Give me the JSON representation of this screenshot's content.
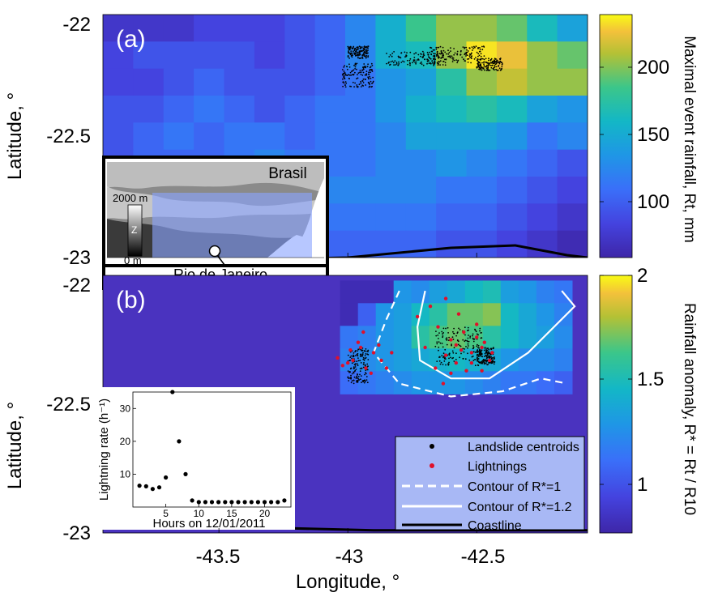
{
  "chart_data": [
    {
      "type": "heatmap",
      "panel": "(a)",
      "panel_label": "(a)",
      "ylabel": "Latitude, °",
      "y_ticks": [
        "-22",
        "-22.5",
        "-23"
      ],
      "xlim": [
        -43.95,
        -42.07
      ],
      "ylim": [
        -23,
        -22
      ],
      "colorbar_label": "Maximal event rainfall, Rt, mm",
      "colorbar_ticks": [
        "100",
        "150",
        "200"
      ],
      "colorbar_range": [
        55,
        235
      ],
      "grid_rows": [
        [
          70,
          70,
          70,
          80,
          80,
          80,
          90,
          100,
          120,
          150,
          180,
          200,
          200,
          190,
          160,
          140
        ],
        [
          80,
          90,
          90,
          90,
          90,
          80,
          90,
          100,
          120,
          150,
          160,
          200,
          230,
          220,
          200,
          190
        ],
        [
          80,
          80,
          90,
          100,
          90,
          90,
          90,
          100,
          110,
          130,
          140,
          170,
          200,
          210,
          200,
          200
        ],
        [
          90,
          90,
          100,
          110,
          100,
          90,
          100,
          110,
          110,
          130,
          150,
          160,
          170,
          160,
          140,
          130
        ],
        [
          90,
          100,
          110,
          100,
          110,
          110,
          100,
          110,
          110,
          120,
          140,
          140,
          140,
          130,
          110,
          120
        ],
        [
          90,
          100,
          100,
          100,
          110,
          120,
          110,
          110,
          110,
          120,
          120,
          130,
          120,
          110,
          100,
          90
        ],
        [
          90,
          100,
          100,
          100,
          110,
          110,
          110,
          120,
          120,
          120,
          120,
          110,
          110,
          100,
          90,
          80
        ],
        [
          70,
          80,
          80,
          90,
          100,
          110,
          110,
          110,
          110,
          110,
          110,
          100,
          100,
          90,
          80,
          70
        ],
        [
          60,
          70,
          70,
          80,
          90,
          100,
          100,
          100,
          100,
          100,
          100,
          90,
          90,
          80,
          70,
          60
        ]
      ],
      "landslide_centroids": [
        {
          "lon": [
            -42.68,
            -42.47
          ],
          "lat": [
            -22.2,
            -22.13
          ]
        },
        {
          "lon": [
            -42.85,
            -42.62
          ],
          "lat": [
            -22.21,
            -22.15
          ]
        },
        {
          "lon": [
            -42.5,
            -42.4
          ],
          "lat": [
            -22.23,
            -22.18
          ]
        },
        {
          "lon": [
            -43.02,
            -42.9
          ],
          "lat": [
            -22.3,
            -22.2
          ]
        },
        {
          "lon": [
            -43.0,
            -42.92
          ],
          "lat": [
            -22.18,
            -22.13
          ]
        }
      ],
      "coastline": [
        [
          -43.95,
          -23.02
        ],
        [
          -43.0,
          -23.0
        ],
        [
          -42.6,
          -22.96
        ],
        [
          -42.35,
          -22.95
        ],
        [
          -42.15,
          -22.99
        ],
        [
          -42.07,
          -23.0
        ]
      ],
      "inset_map": {
        "label": "Brasil",
        "city_label": "Rio de Janeiro",
        "z_label": "Z",
        "z_max_label": "2000 m",
        "z_min_label": "0 m"
      }
    },
    {
      "type": "heatmap",
      "panel": "(b)",
      "panel_label": "(b)",
      "xlabel": "Longitude, °",
      "ylabel": "Latitude, °",
      "x_ticks": [
        "-43.5",
        "-43",
        "-42.5"
      ],
      "x_tick_values": [
        -43.5,
        -43.0,
        -42.5
      ],
      "y_ticks": [
        "-22",
        "-22.5",
        "-23"
      ],
      "xlim": [
        -43.95,
        -42.07
      ],
      "ylim": [
        -23,
        -22
      ],
      "colorbar_label": "Rainfall anomaly, R* = Rt / R10",
      "colorbar_ticks": [
        "1",
        "1.5",
        "2"
      ],
      "colorbar_range": [
        0.68,
        2.04
      ],
      "anomaly_grid": {
        "lon_range": [
          -43.03,
          -42.13
        ],
        "lat_range": [
          -22.46,
          -22.02
        ],
        "rows": [
          [
            0.72,
            0.72,
            0.72,
            1.25,
            1.2,
            1.3,
            1.35,
            1.45,
            1.5,
            1.3,
            1.25,
            1.15,
            1.1
          ],
          [
            0.72,
            1.0,
            1.25,
            1.3,
            1.45,
            1.55,
            1.7,
            1.7,
            1.75,
            1.45,
            1.35,
            1.25,
            1.15
          ],
          [
            1.1,
            1.15,
            1.25,
            1.3,
            1.55,
            1.65,
            1.7,
            1.65,
            1.55,
            1.45,
            1.35,
            1.3,
            1.2
          ],
          [
            1.15,
            1.2,
            1.25,
            1.3,
            1.35,
            1.4,
            1.45,
            1.4,
            1.35,
            1.25,
            1.2,
            1.2,
            1.15
          ],
          [
            1.05,
            1.1,
            1.15,
            1.2,
            1.25,
            1.25,
            1.25,
            1.2,
            1.15,
            1.1,
            1.1,
            1.05,
            1.0
          ]
        ]
      },
      "contour_r1": [
        [
          -42.8,
          -22.06
        ],
        [
          -42.85,
          -22.17
        ],
        [
          -42.9,
          -22.3
        ],
        [
          -42.8,
          -22.42
        ],
        [
          -42.6,
          -22.47
        ],
        [
          -42.4,
          -22.45
        ],
        [
          -42.25,
          -22.4
        ],
        [
          -42.15,
          -22.42
        ]
      ],
      "contour_r12": [
        [
          -42.7,
          -22.06
        ],
        [
          -42.73,
          -22.2
        ],
        [
          -42.72,
          -22.33
        ],
        [
          -42.6,
          -22.4
        ],
        [
          -42.45,
          -22.4
        ],
        [
          -42.3,
          -22.3
        ],
        [
          -42.2,
          -22.2
        ],
        [
          -42.12,
          -22.12
        ],
        [
          -42.17,
          -22.06
        ]
      ],
      "lightnings": [
        [
          -42.95,
          -22.28
        ],
        [
          -42.98,
          -22.33
        ],
        [
          -42.93,
          -22.36
        ],
        [
          -43.0,
          -22.34
        ],
        [
          -42.9,
          -22.3
        ],
        [
          -42.87,
          -22.33
        ],
        [
          -42.96,
          -22.26
        ],
        [
          -42.91,
          -22.38
        ],
        [
          -42.85,
          -22.36
        ],
        [
          -43.04,
          -22.32
        ],
        [
          -43.02,
          -22.35
        ],
        [
          -42.88,
          -22.27
        ],
        [
          -42.99,
          -22.29
        ],
        [
          -42.83,
          -22.3
        ],
        [
          -42.94,
          -22.22
        ],
        [
          -42.6,
          -22.25
        ],
        [
          -42.55,
          -22.22
        ],
        [
          -42.52,
          -22.3
        ],
        [
          -42.58,
          -22.34
        ],
        [
          -42.48,
          -22.28
        ],
        [
          -42.45,
          -22.33
        ],
        [
          -42.62,
          -22.31
        ],
        [
          -42.5,
          -22.19
        ],
        [
          -42.57,
          -22.15
        ],
        [
          -42.65,
          -22.2
        ],
        [
          -42.54,
          -22.37
        ],
        [
          -42.66,
          -22.36
        ],
        [
          -42.7,
          -22.28
        ],
        [
          -42.68,
          -22.12
        ],
        [
          -42.62,
          -22.09
        ],
        [
          -42.48,
          -22.37
        ],
        [
          -42.44,
          -22.3
        ],
        [
          -42.73,
          -22.16
        ],
        [
          -42.58,
          -22.27
        ],
        [
          -42.63,
          -22.42
        ],
        [
          -42.5,
          -22.24
        ],
        [
          -42.56,
          -22.29
        ],
        [
          -42.52,
          -22.34
        ],
        [
          -42.47,
          -22.26
        ],
        [
          -42.6,
          -22.38
        ]
      ],
      "landslide_centroids": [
        {
          "lon": [
            -42.66,
            -42.48
          ],
          "lat": [
            -22.35,
            -22.2
          ]
        },
        {
          "lon": [
            -43.0,
            -42.92
          ],
          "lat": [
            -22.42,
            -22.28
          ]
        },
        {
          "lon": [
            -42.5,
            -42.43
          ],
          "lat": [
            -22.35,
            -22.28
          ]
        }
      ],
      "coastline": [
        [
          -43.95,
          -22.96
        ],
        [
          -43.6,
          -22.97
        ],
        [
          -43.3,
          -22.98
        ],
        [
          -42.9,
          -22.99
        ],
        [
          -42.07,
          -22.99
        ]
      ],
      "legend": [
        {
          "label": "Landslide centroids",
          "marker": "black-dot"
        },
        {
          "label": "Lightnings",
          "marker": "red-dot"
        },
        {
          "label": "Contour of R*=1",
          "marker": "white-dashed-line"
        },
        {
          "label": "Contour of R*=1.2",
          "marker": "white-solid-line"
        },
        {
          "label": "Coastline",
          "marker": "black-line"
        }
      ],
      "inset": {
        "type": "scatter",
        "xlabel": "Hours on 12/01/2011",
        "ylabel": "Lightning rate (h⁻¹)",
        "x_ticks": [
          5,
          10,
          15,
          20
        ],
        "y_ticks": [
          10,
          20,
          30
        ],
        "xlim": [
          0,
          24
        ],
        "ylim": [
          0,
          35
        ],
        "x": [
          1,
          2,
          3,
          4,
          5,
          6,
          7,
          8,
          9,
          10,
          11,
          12,
          13,
          14,
          15,
          16,
          17,
          18,
          19,
          20,
          21,
          22,
          23
        ],
        "values": [
          6.5,
          6.3,
          5.5,
          6.0,
          9.0,
          35.0,
          20.0,
          10.0,
          2.0,
          1.5,
          1.5,
          1.5,
          1.5,
          1.5,
          1.5,
          1.5,
          1.5,
          1.5,
          1.5,
          1.5,
          1.5,
          1.5,
          2.0
        ]
      }
    }
  ]
}
